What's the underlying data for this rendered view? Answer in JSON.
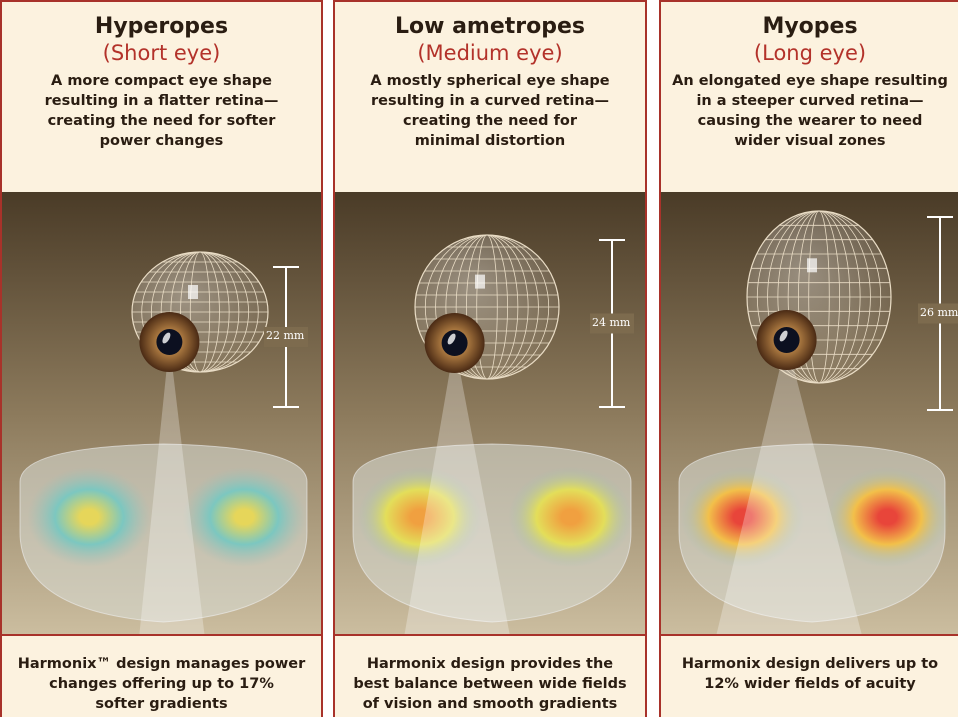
{
  "panels": [
    {
      "title": "Hyperopes",
      "subtitle": "(Short eye)",
      "description": [
        "A more compact eye shape",
        "resulting in a flatter retina—",
        "creating the need for softer",
        "power changes"
      ],
      "measurement": "22 mm",
      "footer": [
        "Harmonix™ design manages power",
        "changes offering up to 17%",
        "softer gradients"
      ]
    },
    {
      "title": "Low ametropes",
      "subtitle": "(Medium eye)",
      "description": [
        "A mostly spherical eye shape",
        "resulting in a curved retina—",
        "creating the need for",
        "minimal distortion"
      ],
      "measurement": "24 mm",
      "footer": [
        "Harmonix design provides the",
        "best balance between wide fields",
        "of vision and smooth gradients"
      ]
    },
    {
      "title": "Myopes",
      "subtitle": "(Long eye)",
      "description": [
        "An elongated eye shape resulting",
        "in a steeper curved retina—",
        "causing the wearer to need",
        "wider visual zones"
      ],
      "measurement": "26 mm",
      "footer": [
        "Harmonix design delivers up to",
        "12% wider fields of acuity"
      ]
    }
  ]
}
